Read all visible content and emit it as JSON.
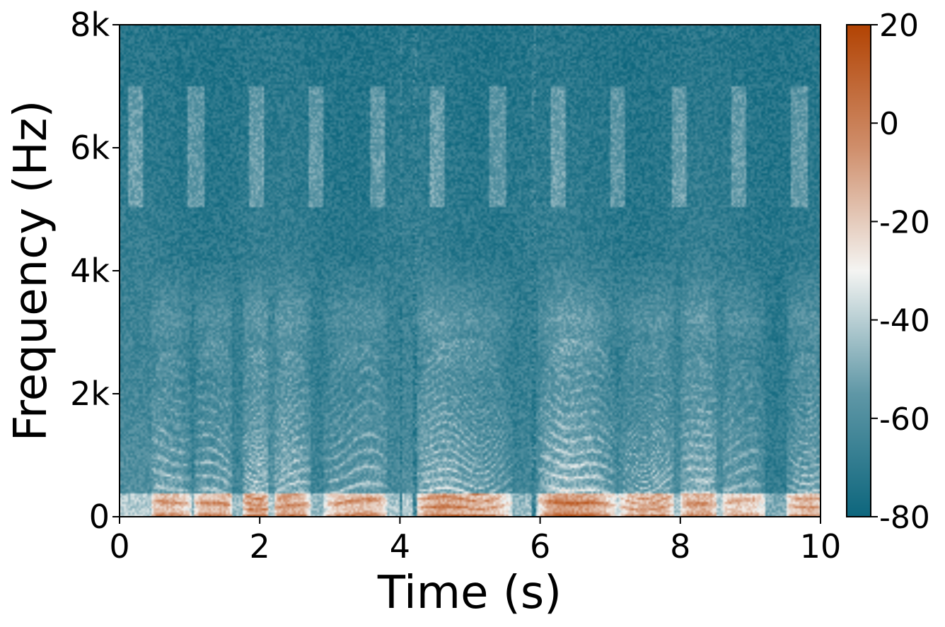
{
  "chart_data": {
    "type": "heatmap",
    "subtype": "spectrogram",
    "title": "",
    "xlabel": "Time (s)",
    "ylabel": "Frequency (Hz)",
    "xlim": [
      0,
      10
    ],
    "ylim": [
      0,
      8000
    ],
    "x_ticks": [
      0,
      2,
      4,
      6,
      8,
      10
    ],
    "x_tick_labels": [
      "0",
      "2",
      "4",
      "6",
      "8",
      "10"
    ],
    "y_ticks": [
      0,
      2000,
      4000,
      6000,
      8000
    ],
    "y_tick_labels": [
      "0",
      "2k",
      "4k",
      "6k",
      "8k"
    ],
    "colorbar": {
      "location": "right",
      "range": [
        -80,
        20
      ],
      "ticks": [
        20,
        0,
        -20,
        -40,
        -60,
        -80
      ],
      "tick_labels": [
        "20",
        "0",
        "-20",
        "-40",
        "-60",
        "-80"
      ],
      "colormap_stops": [
        {
          "value": -80,
          "color": "#0d667d"
        },
        {
          "value": -55,
          "color": "#5f97a6"
        },
        {
          "value": -30,
          "color": "#f4f4f2"
        },
        {
          "value": -5,
          "color": "#cf8e6b"
        },
        {
          "value": 20,
          "color": "#b24303"
        }
      ]
    },
    "voiced_segments": [
      {
        "start": 0.45,
        "end": 1.0,
        "level": 0.85
      },
      {
        "start": 1.05,
        "end": 1.6,
        "level": 1.0
      },
      {
        "start": 1.75,
        "end": 2.1,
        "level": 0.9
      },
      {
        "start": 2.2,
        "end": 2.7,
        "level": 0.85
      },
      {
        "start": 2.9,
        "end": 3.8,
        "level": 0.95
      },
      {
        "start": 4.2,
        "end": 5.6,
        "level": 1.0
      },
      {
        "start": 5.95,
        "end": 7.1,
        "level": 1.0
      },
      {
        "start": 7.1,
        "end": 7.9,
        "level": 0.95
      },
      {
        "start": 8.0,
        "end": 8.5,
        "level": 0.8
      },
      {
        "start": 8.6,
        "end": 9.2,
        "level": 0.75
      },
      {
        "start": 9.5,
        "end": 10.0,
        "level": 0.85
      }
    ],
    "silence_gaps": [
      4.0,
      4.2,
      5.9
    ]
  }
}
